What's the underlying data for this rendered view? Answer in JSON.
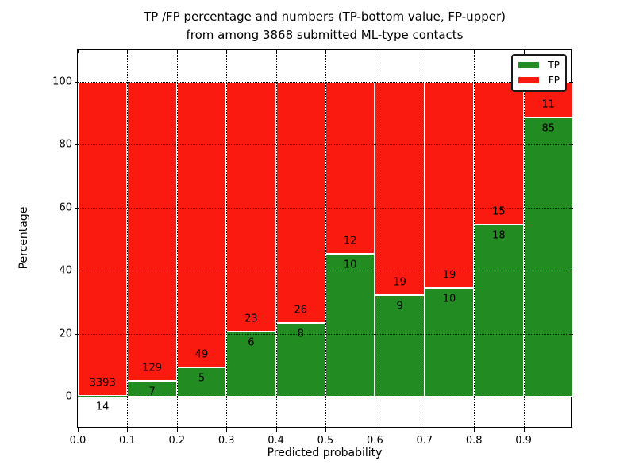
{
  "title": {
    "line1": "TP /FP percentage and numbers (TP-bottom value, FP-upper)",
    "line2": "from among 3868 submitted ML-type contacts"
  },
  "axes": {
    "xlabel": "Predicted probability",
    "ylabel": "Percentage"
  },
  "legend": {
    "position": "upper right",
    "items": [
      {
        "label": "TP",
        "color": "#228b22"
      },
      {
        "label": "FP",
        "color": "#fa1a10"
      }
    ]
  },
  "chart_data": {
    "type": "bar",
    "stacked": true,
    "normalized_to": 100,
    "title": "TP /FP percentage and numbers (TP-bottom value, FP-upper) from among 3868 submitted ML-type contacts",
    "xlabel": "Predicted probability",
    "ylabel": "Percentage",
    "total_contacts": 3868,
    "bin_width": 0.1,
    "categories": [
      "0.0-0.1",
      "0.1-0.2",
      "0.2-0.3",
      "0.3-0.4",
      "0.4-0.5",
      "0.5-0.6",
      "0.6-0.7",
      "0.7-0.8",
      "0.8-0.9",
      "0.9-1.0"
    ],
    "x_tick_labels": [
      "0.0",
      "0.1",
      "0.2",
      "0.3",
      "0.4",
      "0.5",
      "0.6",
      "0.7",
      "0.8",
      "0.9"
    ],
    "y_tick_values": [
      0,
      20,
      40,
      60,
      80,
      100
    ],
    "xlim": [
      0.0,
      1.0
    ],
    "ylim": [
      -10,
      110
    ],
    "grid": true,
    "legend_position": "upper right",
    "series": [
      {
        "name": "TP",
        "color": "#228b22",
        "counts": [
          14,
          7,
          5,
          6,
          8,
          10,
          9,
          10,
          18,
          85
        ],
        "percent": [
          0.41,
          5.15,
          9.26,
          20.69,
          23.53,
          45.45,
          32.14,
          34.48,
          54.55,
          88.54
        ]
      },
      {
        "name": "FP",
        "color": "#fa1a10",
        "counts": [
          3393,
          129,
          49,
          23,
          26,
          12,
          19,
          19,
          15,
          11
        ],
        "percent": [
          99.59,
          94.85,
          90.74,
          79.31,
          76.47,
          54.55,
          67.86,
          65.52,
          45.45,
          11.46
        ]
      }
    ]
  }
}
